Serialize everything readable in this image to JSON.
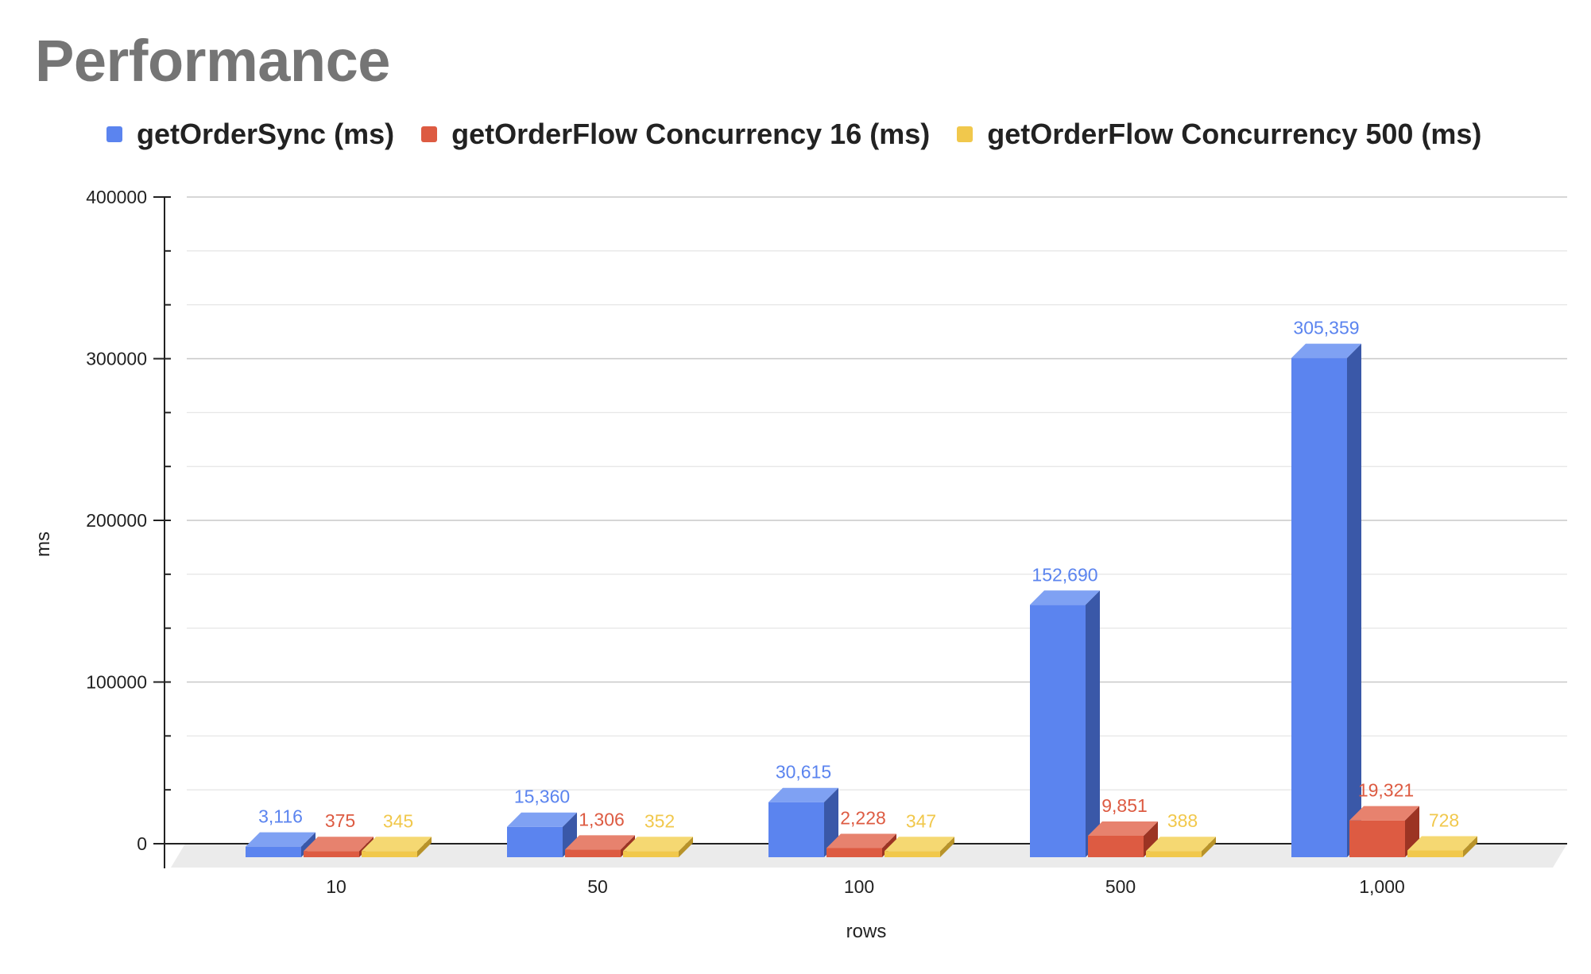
{
  "title": "Performance",
  "chart_data": {
    "type": "bar",
    "title": "Performance",
    "xlabel": "rows",
    "ylabel": "ms",
    "categories": [
      "10",
      "50",
      "100",
      "500",
      "1,000"
    ],
    "ylim": [
      0,
      400000
    ],
    "yticks": [
      0,
      100000,
      200000,
      300000,
      400000
    ],
    "ytick_labels": [
      "0",
      "100000",
      "200000",
      "300000",
      "400000"
    ],
    "grid": true,
    "legend_position": "top",
    "style": "3d",
    "series": [
      {
        "name": "getOrderSync (ms)",
        "color": "#5b84ef",
        "side_color": "#3a58a8",
        "top_color": "#7fa1f3",
        "values": [
          3116,
          15360,
          30615,
          152690,
          305359
        ],
        "labels": [
          "3,116",
          "15,360",
          "30,615",
          "152,690",
          "305,359"
        ]
      },
      {
        "name": "getOrderFlow Concurrency 16 (ms)",
        "color": "#dd5b42",
        "side_color": "#9c3423",
        "top_color": "#e7826e",
        "values": [
          375,
          1306,
          2228,
          9851,
          19321
        ],
        "labels": [
          "375",
          "1,306",
          "2,228",
          "9,851",
          "19,321"
        ]
      },
      {
        "name": "getOrderFlow Concurrency 500 (ms)",
        "color": "#f1c84c",
        "side_color": "#b8932a",
        "top_color": "#f5d872",
        "values": [
          345,
          352,
          347,
          388,
          728
        ],
        "labels": [
          "345",
          "352",
          "347",
          "388",
          "728"
        ]
      }
    ]
  }
}
